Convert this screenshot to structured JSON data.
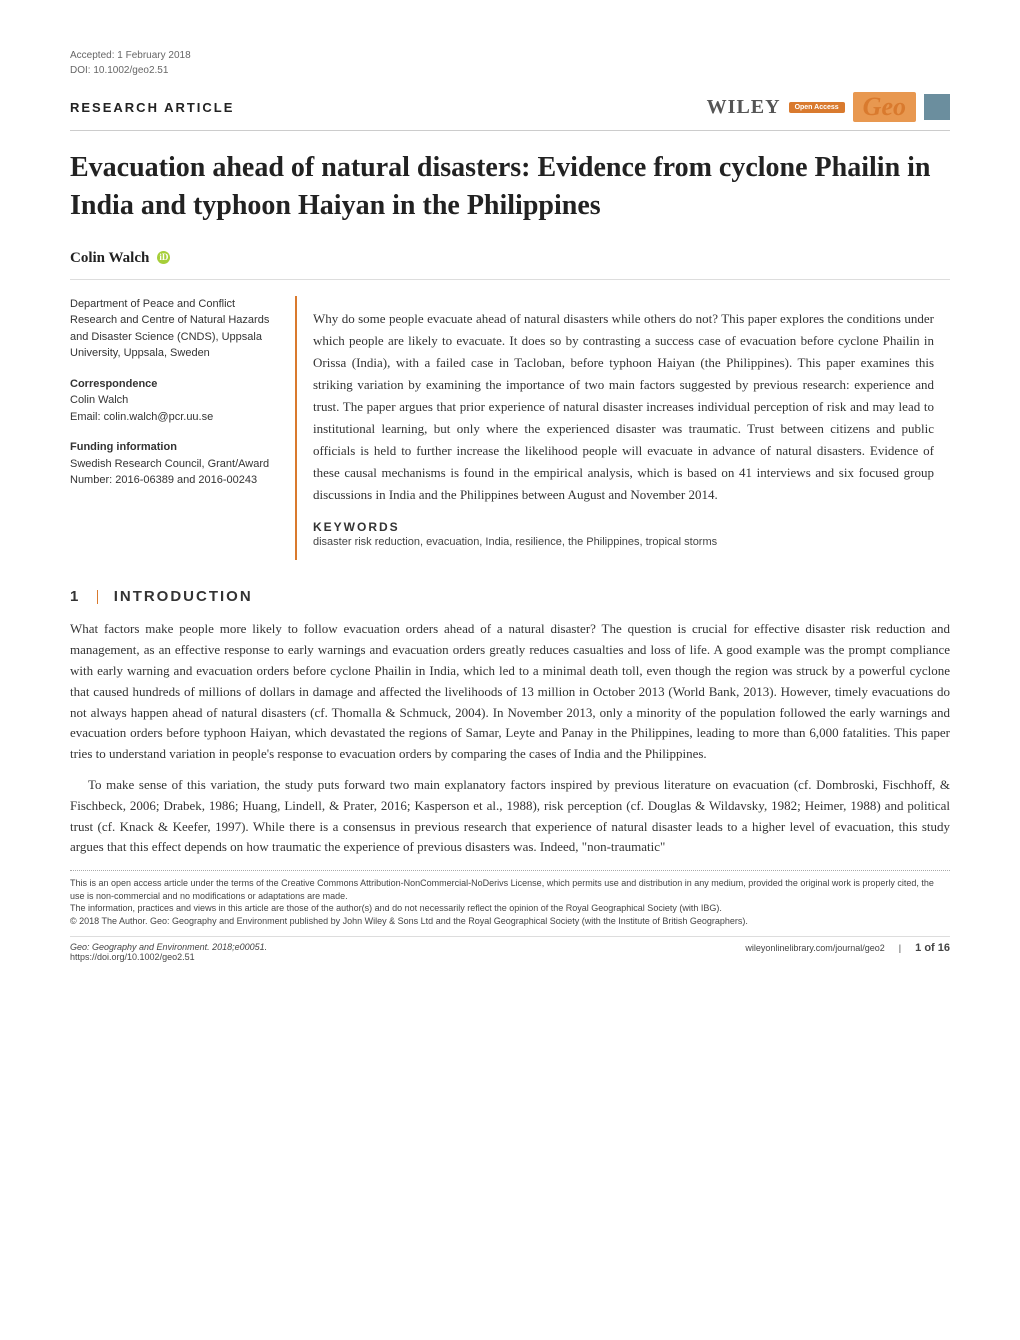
{
  "meta": {
    "accepted": "Accepted: 1 February 2018",
    "doi": "DOI: 10.1002/geo2.51",
    "article_type": "RESEARCH ARTICLE",
    "wiley": "WILEY",
    "open_access": "Open Access",
    "geo": "Geo"
  },
  "title": "Evacuation ahead of natural disasters: Evidence from cyclone Phailin in India and typhoon Haiyan in the Philippines",
  "author": {
    "name": "Colin Walch",
    "orcid_glyph": "iD"
  },
  "left_col": {
    "affiliation": "Department of Peace and Conflict Research and Centre of Natural Hazards and Disaster Science (CNDS), Uppsala University, Uppsala, Sweden",
    "correspondence_label": "Correspondence",
    "correspondence_name": "Colin Walch",
    "correspondence_email": "Email: colin.walch@pcr.uu.se",
    "funding_label": "Funding information",
    "funding_text": "Swedish Research Council, Grant/Award Number: 2016-06389 and 2016-00243"
  },
  "abstract": "Why do some people evacuate ahead of natural disasters while others do not? This paper explores the conditions under which people are likely to evacuate. It does so by contrasting a success case of evacuation before cyclone Phailin in Orissa (India), with a failed case in Tacloban, before typhoon Haiyan (the Philippines). This paper examines this striking variation by examining the importance of two main factors suggested by previous research: experience and trust. The paper argues that prior experience of natural disaster increases individual perception of risk and may lead to institutional learning, but only where the experienced disaster was traumatic. Trust between citizens and public officials is held to further increase the likelihood people will evacuate in advance of natural disasters. Evidence of these causal mechanisms is found in the empirical analysis, which is based on 41 interviews and six focused group discussions in India and the Philippines between August and November 2014.",
  "keywords_label": "KEYWORDS",
  "keywords": "disaster risk reduction, evacuation, India, resilience, the Philippines, tropical storms",
  "section": {
    "number": "1",
    "title": "INTRODUCTION"
  },
  "body": {
    "p1": "What factors make people more likely to follow evacuation orders ahead of a natural disaster? The question is crucial for effective disaster risk reduction and management, as an effective response to early warnings and evacuation orders greatly reduces casualties and loss of life. A good example was the prompt compliance with early warning and evacuation orders before cyclone Phailin in India, which led to a minimal death toll, even though the region was struck by a powerful cyclone that caused hundreds of millions of dollars in damage and affected the livelihoods of 13 million in October 2013 (World Bank, 2013). However, timely evacuations do not always happen ahead of natural disasters (cf. Thomalla & Schmuck, 2004). In November 2013, only a minority of the population followed the early warnings and evacuation orders before typhoon Haiyan, which devastated the regions of Samar, Leyte and Panay in the Philippines, leading to more than 6,000 fatalities. This paper tries to understand variation in people's response to evacuation orders by comparing the cases of India and the Philippines.",
    "p2": "To make sense of this variation, the study puts forward two main explanatory factors inspired by previous literature on evacuation (cf. Dombroski, Fischhoff, & Fischbeck, 2006; Drabek, 1986; Huang, Lindell, & Prater, 2016; Kasperson et al., 1988), risk perception (cf. Douglas & Wildavsky, 1982; Heimer, 1988) and political trust (cf. Knack & Keefer, 1997). While there is a consensus in previous research that experience of natural disaster leads to a higher level of evacuation, this study argues that this effect depends on how traumatic the experience of previous disasters was. Indeed, \"non-traumatic\""
  },
  "footer": {
    "license": "This is an open access article under the terms of the Creative Commons Attribution-NonCommercial-NoDerivs License, which permits use and distribution in any medium, provided the original work is properly cited, the use is non-commercial and no modifications or adaptations are made.",
    "disclaimer": "The information, practices and views in this article are those of the author(s) and do not necessarily reflect the opinion of the Royal Geographical Society (with IBG).",
    "copyright": "© 2018 The Author. Geo: Geography and Environment published by John Wiley & Sons Ltd and the Royal Geographical Society (with the Institute of British Geographers).",
    "citation": "Geo: Geography and Environment. 2018;e00051.",
    "doi_url": "https://doi.org/10.1002/geo2.51",
    "journal_url": "wileyonlinelibrary.com/journal/geo2",
    "page": "1 of 16"
  },
  "colors": {
    "accent": "#d97a2e",
    "text": "#333333",
    "meta_text": "#666666"
  }
}
